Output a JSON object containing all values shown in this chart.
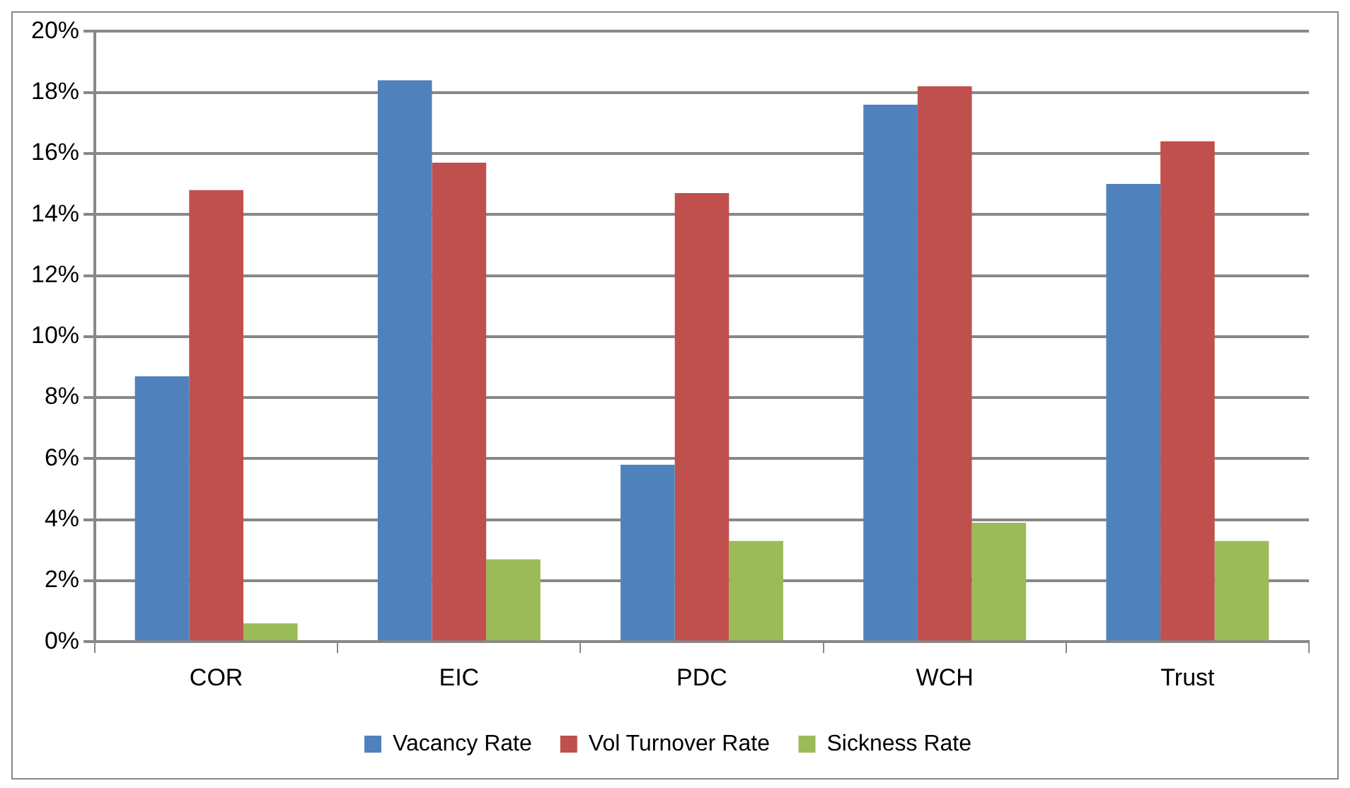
{
  "chart_data": {
    "type": "bar",
    "categories": [
      "COR",
      "EIC",
      "PDC",
      "WCH",
      "Trust"
    ],
    "series": [
      {
        "name": "Vacancy Rate",
        "color": "#4f81bd",
        "values": [
          8.7,
          18.4,
          5.8,
          17.6,
          15.0
        ]
      },
      {
        "name": "Vol Turnover Rate",
        "color": "#c0504d",
        "values": [
          14.8,
          15.7,
          14.7,
          18.2,
          16.4
        ]
      },
      {
        "name": "Sickness Rate",
        "color": "#9bbb59",
        "values": [
          0.6,
          2.7,
          3.3,
          3.9,
          3.3
        ]
      }
    ],
    "ylim": [
      0,
      20
    ],
    "yticks": [
      {
        "value": 0,
        "label": "0%"
      },
      {
        "value": 2,
        "label": "2%"
      },
      {
        "value": 4,
        "label": "4%"
      },
      {
        "value": 6,
        "label": "6%"
      },
      {
        "value": 8,
        "label": "8%"
      },
      {
        "value": 10,
        "label": "10%"
      },
      {
        "value": 12,
        "label": "12%"
      },
      {
        "value": 14,
        "label": "14%"
      },
      {
        "value": 16,
        "label": "16%"
      },
      {
        "value": 18,
        "label": "18%"
      },
      {
        "value": 20,
        "label": "20%"
      }
    ],
    "grid": "y",
    "legend": "bottom"
  }
}
